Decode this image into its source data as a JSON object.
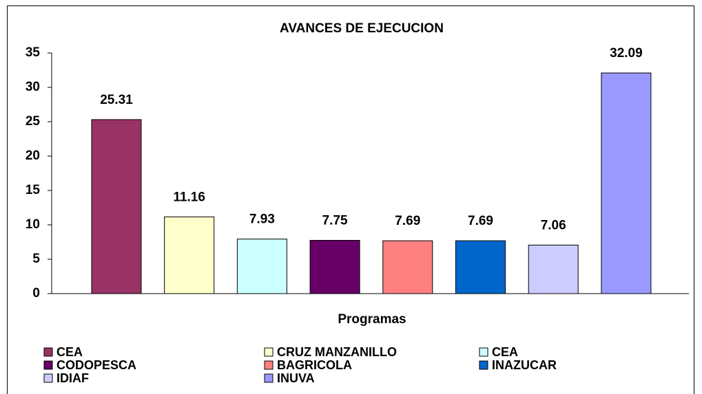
{
  "chart_data": {
    "type": "bar",
    "title": "AVANCES DE EJECUCION",
    "x_label": "Programas",
    "series": [
      {
        "name": "CEA",
        "color": "#993366",
        "values": [
          25.31
        ]
      },
      {
        "name": "CRUZ MANZANILLO",
        "color": "#FFFFCC",
        "values": [
          11.16
        ]
      },
      {
        "name": "CEA",
        "color": "#CCFFFF",
        "values": [
          7.93
        ]
      },
      {
        "name": "CODOPESCA",
        "color": "#660066",
        "values": [
          7.75
        ]
      },
      {
        "name": "BAGRICOLA",
        "color": "#FF8080",
        "values": [
          7.69
        ]
      },
      {
        "name": "INAZUCAR",
        "color": "#0066CC",
        "values": [
          7.69
        ]
      },
      {
        "name": "IDIAF",
        "color": "#CCCCFF",
        "values": [
          7.06
        ]
      },
      {
        "name": "INUVA",
        "color": "#9999FF",
        "values": [
          32.09
        ]
      }
    ],
    "ylim": [
      0,
      35
    ],
    "yticks": [
      0,
      5,
      10,
      15,
      20,
      25,
      30,
      35
    ],
    "grid": false,
    "legend": "bottom"
  }
}
